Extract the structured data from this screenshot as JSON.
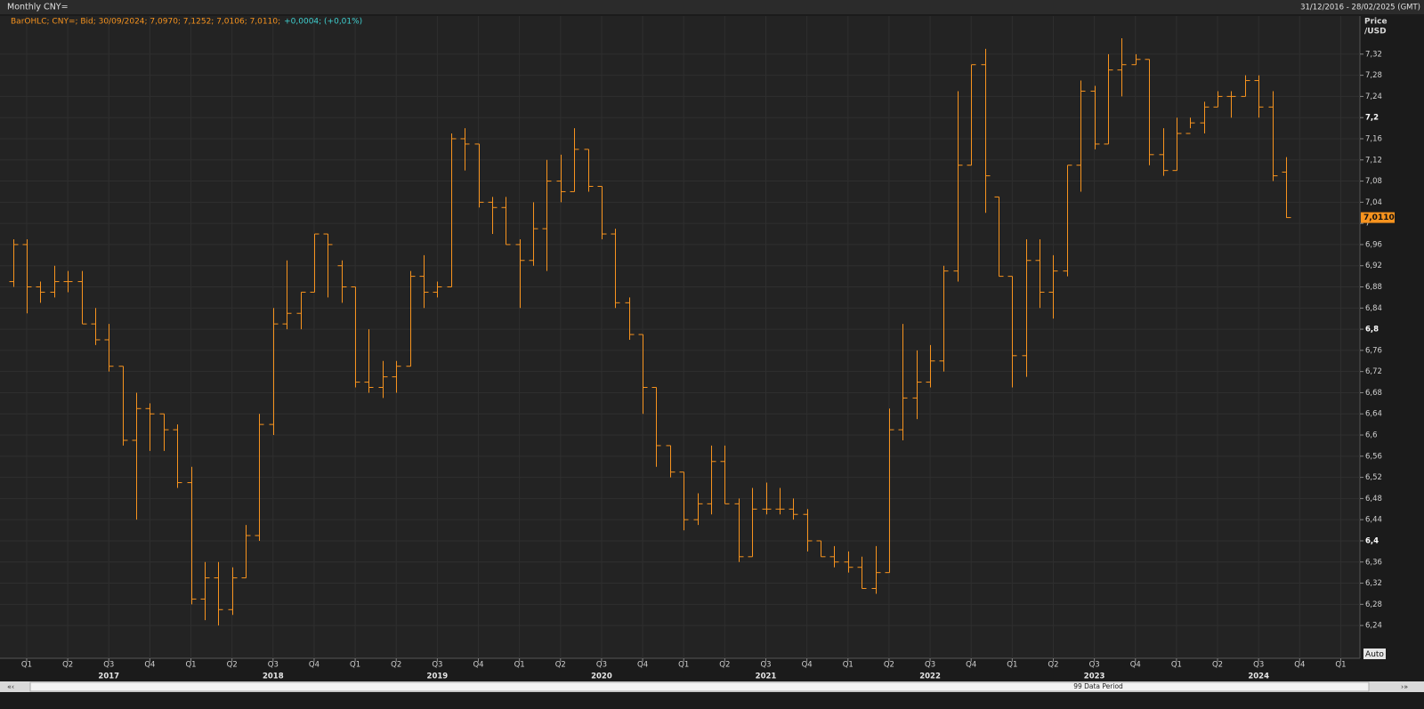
{
  "chart_data": {
    "type": "ohlc",
    "title": "Monthly CNY=",
    "date_range": "31/12/2016 - 28/02/2025 (GMT)",
    "legend_text": "BarOHLC; CNY=; Bid; 30/09/2024; 7,0970; 7,1252; 7,0106; 7,0110;",
    "legend_change": "+0,0004; (+0,01%)",
    "y_axis_label": "Price",
    "y_axis_unit": "/USD",
    "last_value_label": "7,0110",
    "auto_button": "Auto",
    "scroll_label": "99 Data Period",
    "color": "#f7931e",
    "grid": true,
    "ylim": [
      6.178,
      7.392
    ],
    "yticks": [
      {
        "value": 6.24,
        "label": "6,24"
      },
      {
        "value": 6.28,
        "label": "6,28"
      },
      {
        "value": 6.32,
        "label": "6,32"
      },
      {
        "value": 6.36,
        "label": "6,36"
      },
      {
        "value": 6.4,
        "label": "6,4"
      },
      {
        "value": 6.44,
        "label": "6,44"
      },
      {
        "value": 6.48,
        "label": "6,48"
      },
      {
        "value": 6.52,
        "label": "6,52"
      },
      {
        "value": 6.56,
        "label": "6,56"
      },
      {
        "value": 6.6,
        "label": "6,6"
      },
      {
        "value": 6.64,
        "label": "6,64"
      },
      {
        "value": 6.68,
        "label": "6,68"
      },
      {
        "value": 6.72,
        "label": "6,72"
      },
      {
        "value": 6.76,
        "label": "6,76"
      },
      {
        "value": 6.8,
        "label": "6,8"
      },
      {
        "value": 6.84,
        "label": "6,84"
      },
      {
        "value": 6.88,
        "label": "6,88"
      },
      {
        "value": 6.92,
        "label": "6,92"
      },
      {
        "value": 6.96,
        "label": "6,96"
      },
      7,
      {
        "value": 7.04,
        "label": "7,04"
      },
      {
        "value": 7.08,
        "label": "7,08"
      },
      {
        "value": 7.12,
        "label": "7,12"
      },
      {
        "value": 7.16,
        "label": "7,16"
      },
      {
        "value": 7.2,
        "label": "7,2"
      },
      {
        "value": 7.24,
        "label": "7,24"
      },
      {
        "value": 7.28,
        "label": "7,28"
      },
      {
        "value": 7.32,
        "label": "7,32"
      }
    ],
    "quarter_labels": [
      "Q1",
      "Q2",
      "Q3",
      "Q4",
      "Q1",
      "Q2",
      "Q3",
      "Q4",
      "Q1",
      "Q2",
      "Q3",
      "Q4",
      "Q1",
      "Q2",
      "Q3",
      "Q4",
      "Q1",
      "Q2",
      "Q3",
      "Q4",
      "Q1",
      "Q2",
      "Q3",
      "Q4",
      "Q1",
      "Q2",
      "Q3",
      "Q4",
      "Q1",
      "Q2",
      "Q3",
      "Q4",
      "Q1"
    ],
    "year_labels": [
      "2017",
      "2018",
      "2019",
      "2020",
      "2021",
      "2022",
      "2023",
      "2024"
    ],
    "series": [
      {
        "name": "CNY=",
        "open": [
          6.89,
          6.96,
          6.88,
          6.87,
          6.89,
          6.89,
          6.81,
          6.78,
          6.73,
          6.59,
          6.65,
          6.64,
          6.61,
          6.51,
          6.29,
          6.33,
          6.27,
          6.33,
          6.41,
          6.62,
          6.81,
          6.83,
          6.87,
          6.98,
          6.92,
          6.88,
          6.7,
          6.69,
          6.71,
          6.73,
          6.9,
          6.87,
          6.88,
          7.16,
          7.15,
          7.04,
          7.03,
          6.96,
          6.93,
          6.99,
          7.08,
          7.06,
          7.14,
          7.07,
          6.98,
          6.85,
          6.79,
          6.69,
          6.58,
          6.53,
          6.44,
          6.47,
          6.55,
          6.47,
          6.37,
          6.46,
          6.46,
          6.46,
          6.45,
          6.4,
          6.37,
          6.36,
          6.35,
          6.31,
          6.34,
          6.61,
          6.67,
          6.7,
          6.74,
          6.91,
          7.11,
          7.3,
          7.05,
          6.9,
          6.75,
          6.93,
          6.87,
          6.91,
          7.11,
          7.25,
          7.15,
          7.29,
          7.3,
          7.31,
          7.13,
          7.1,
          7.17,
          7.19,
          7.22,
          7.24,
          7.24,
          7.27,
          7.22,
          7.097
        ],
        "high": [
          6.97,
          6.97,
          6.89,
          6.92,
          6.91,
          6.91,
          6.84,
          6.81,
          6.73,
          6.68,
          6.66,
          6.64,
          6.62,
          6.54,
          6.36,
          6.36,
          6.35,
          6.43,
          6.64,
          6.84,
          6.93,
          6.87,
          6.98,
          6.98,
          6.93,
          6.88,
          6.8,
          6.74,
          6.74,
          6.91,
          6.94,
          6.89,
          7.17,
          7.18,
          7.15,
          7.05,
          7.05,
          6.97,
          7.04,
          7.12,
          7.13,
          7.18,
          7.14,
          7.07,
          6.99,
          6.86,
          6.79,
          6.69,
          6.58,
          6.53,
          6.49,
          6.58,
          6.58,
          6.48,
          6.5,
          6.51,
          6.5,
          6.48,
          6.46,
          6.4,
          6.39,
          6.38,
          6.37,
          6.39,
          6.65,
          6.81,
          6.76,
          6.77,
          6.92,
          7.25,
          7.3,
          7.33,
          7.05,
          6.9,
          6.97,
          6.97,
          6.94,
          7.11,
          7.27,
          7.26,
          7.32,
          7.35,
          7.32,
          7.31,
          7.18,
          7.2,
          7.2,
          7.23,
          7.25,
          7.25,
          7.28,
          7.28,
          7.25,
          7.1252
        ],
        "low": [
          6.88,
          6.83,
          6.85,
          6.86,
          6.87,
          6.81,
          6.77,
          6.72,
          6.58,
          6.44,
          6.57,
          6.57,
          6.5,
          6.28,
          6.25,
          6.24,
          6.26,
          6.33,
          6.4,
          6.6,
          6.8,
          6.8,
          6.87,
          6.86,
          6.85,
          6.69,
          6.68,
          6.67,
          6.68,
          6.73,
          6.84,
          6.86,
          6.88,
          7.1,
          7.03,
          6.98,
          6.96,
          6.84,
          6.92,
          6.91,
          7.04,
          7.06,
          7.06,
          6.97,
          6.84,
          6.78,
          6.64,
          6.54,
          6.52,
          6.42,
          6.43,
          6.45,
          6.47,
          6.36,
          6.37,
          6.45,
          6.45,
          6.44,
          6.38,
          6.37,
          6.35,
          6.34,
          6.31,
          6.3,
          6.34,
          6.59,
          6.63,
          6.69,
          6.72,
          6.89,
          7.11,
          7.02,
          6.9,
          6.69,
          6.71,
          6.84,
          6.82,
          6.9,
          7.06,
          7.14,
          7.15,
          7.24,
          7.3,
          7.11,
          7.09,
          7.1,
          7.18,
          7.17,
          7.22,
          7.2,
          7.24,
          7.2,
          7.08,
          7.0106
        ],
        "close": [
          6.96,
          6.88,
          6.87,
          6.89,
          6.89,
          6.81,
          6.78,
          6.73,
          6.59,
          6.65,
          6.64,
          6.61,
          6.51,
          6.29,
          6.33,
          6.27,
          6.33,
          6.41,
          6.62,
          6.81,
          6.83,
          6.87,
          6.98,
          6.96,
          6.88,
          6.7,
          6.69,
          6.71,
          6.73,
          6.9,
          6.87,
          6.88,
          7.16,
          7.15,
          7.04,
          7.03,
          6.96,
          6.93,
          6.99,
          7.08,
          7.06,
          7.14,
          7.07,
          6.98,
          6.85,
          6.79,
          6.69,
          6.58,
          6.53,
          6.44,
          6.47,
          6.55,
          6.47,
          6.37,
          6.46,
          6.46,
          6.46,
          6.45,
          6.4,
          6.37,
          6.36,
          6.35,
          6.31,
          6.34,
          6.61,
          6.67,
          6.7,
          6.74,
          6.91,
          7.11,
          7.3,
          7.09,
          6.9,
          6.75,
          6.93,
          6.87,
          6.91,
          7.11,
          7.25,
          7.15,
          7.29,
          7.3,
          7.31,
          7.13,
          7.1,
          7.17,
          7.19,
          7.22,
          7.24,
          7.24,
          7.27,
          7.22,
          7.09,
          7.011
        ]
      }
    ]
  }
}
